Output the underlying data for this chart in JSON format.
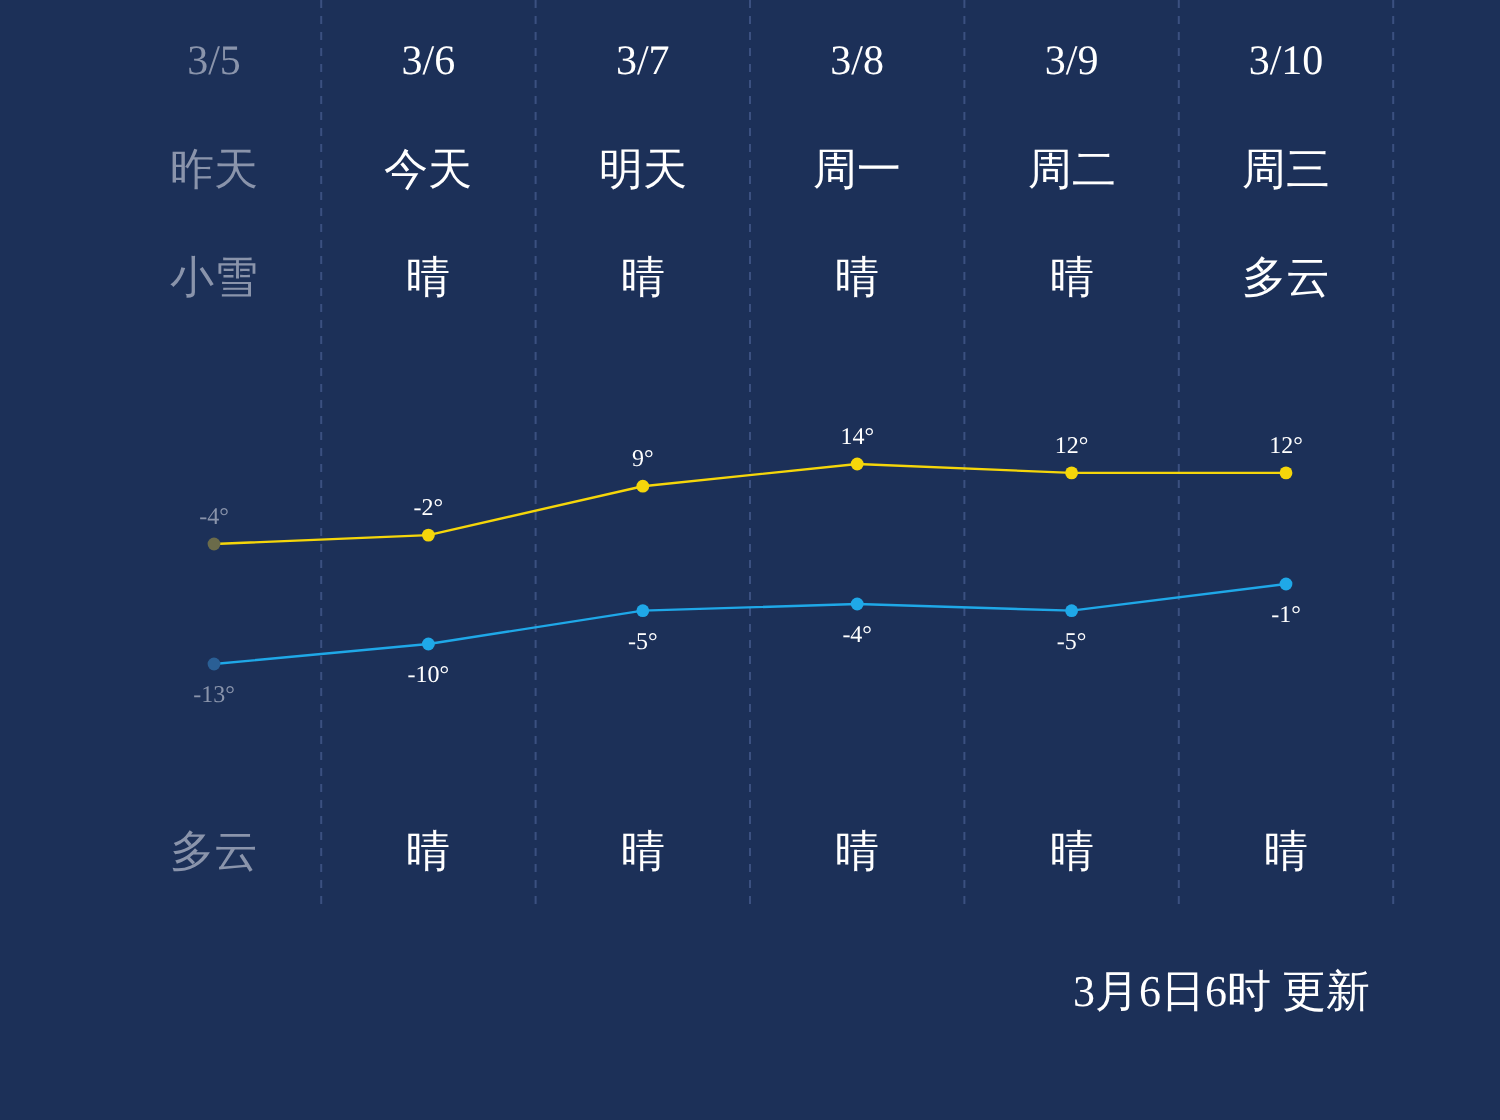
{
  "chart_data": [
    {
      "type": "line",
      "categories": [
        "3/5",
        "3/6",
        "3/7",
        "3/8",
        "3/9",
        "3/10"
      ],
      "colors": [
        "#8a94ab",
        "#ffffff",
        "#ffffff",
        "#ffffff",
        "#ffffff",
        "#ffffff"
      ],
      "series": [
        {
          "color": "#f5d60a",
          "colors": [
            "#6b6b4a",
            "#f5d60a",
            "#f5d60a",
            "#f5d60a",
            "#f5d60a",
            "#f5d60a"
          ],
          "values": [
            -4,
            -2,
            9,
            14,
            12,
            12
          ],
          "value_labels": [
            "-4°",
            "-2°",
            "9°",
            "14°",
            "12°",
            "12°"
          ]
        }
      ],
      "grid": "x",
      "marker": "circle",
      "annotations": [
        "昨天",
        "今天",
        "明天",
        "周一",
        "周二",
        "周三",
        "小雪",
        "晴",
        "晴",
        "晴",
        "晴",
        "多云",
        "多云",
        "晴",
        "晴",
        "晴",
        "晴",
        "晴",
        "3月6日6时 更新"
      ]
    },
    {
      "type": "line",
      "categories": [
        null,
        null,
        null,
        null,
        null,
        null
      ],
      "colors": [
        "#8a94ab",
        "#ffffff",
        "#ffffff",
        "#ffffff",
        "#ffffff",
        "#ffffff"
      ],
      "series": [
        {
          "color": "#1fa8e8",
          "colors": [
            "#2a5f95",
            "#1fa8e8",
            "#1fa8e8",
            "#1fa8e8",
            "#1fa8e8",
            "#1fa8e8"
          ],
          "values": [
            -13,
            -10,
            -5,
            -4,
            -5,
            -1
          ],
          "value_labels": [
            "-13°",
            "-10°",
            "-5°",
            "-4°",
            "-5°",
            "-1°"
          ]
        }
      ],
      "marker": "circle"
    }
  ]
}
